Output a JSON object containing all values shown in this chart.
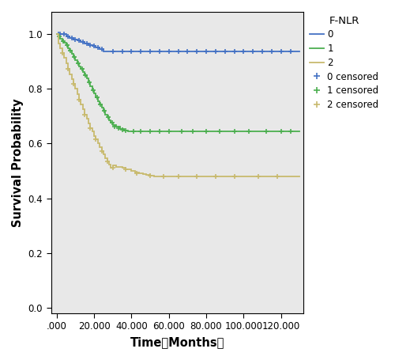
{
  "xlabel": "Time（Months）",
  "ylabel": "Survival Probability",
  "legend_title": "F-NLR",
  "xlim": [
    -3,
    132
  ],
  "ylim": [
    -0.02,
    1.08
  ],
  "xtick_positions": [
    0,
    20,
    40,
    60,
    80,
    100,
    120
  ],
  "xtick_labels": [
    ".000",
    "20.000",
    "40.000",
    "60.000",
    "80.000",
    "100.000",
    "120.000"
  ],
  "yticks": [
    0.0,
    0.2,
    0.4,
    0.6,
    0.8,
    1.0
  ],
  "ytick_labels": [
    "0.0",
    "0.2",
    "0.4",
    "0.6",
    "0.8",
    "1.0"
  ],
  "bg_color": "#e8e8e8",
  "colors": {
    "0": "#4472C4",
    "1": "#4CAF50",
    "2": "#C8BA6E"
  },
  "group0_steps": [
    [
      0,
      1.0
    ],
    [
      3,
      1.0
    ],
    [
      5,
      0.99
    ],
    [
      7,
      0.985
    ],
    [
      9,
      0.98
    ],
    [
      11,
      0.975
    ],
    [
      13,
      0.97
    ],
    [
      15,
      0.965
    ],
    [
      17,
      0.96
    ],
    [
      19,
      0.955
    ],
    [
      21,
      0.95
    ],
    [
      23,
      0.945
    ],
    [
      25,
      0.935
    ],
    [
      130,
      0.935
    ]
  ],
  "group0_censors": [
    [
      1,
      1.0
    ],
    [
      2,
      1.0
    ],
    [
      4,
      1.0
    ],
    [
      6,
      0.99
    ],
    [
      8,
      0.985
    ],
    [
      10,
      0.98
    ],
    [
      12,
      0.975
    ],
    [
      14,
      0.97
    ],
    [
      16,
      0.965
    ],
    [
      18,
      0.96
    ],
    [
      20,
      0.955
    ],
    [
      22,
      0.95
    ],
    [
      24,
      0.945
    ],
    [
      30,
      0.935
    ],
    [
      35,
      0.935
    ],
    [
      40,
      0.935
    ],
    [
      45,
      0.935
    ],
    [
      50,
      0.935
    ],
    [
      55,
      0.935
    ],
    [
      60,
      0.935
    ],
    [
      65,
      0.935
    ],
    [
      70,
      0.935
    ],
    [
      75,
      0.935
    ],
    [
      80,
      0.935
    ],
    [
      85,
      0.935
    ],
    [
      90,
      0.935
    ],
    [
      95,
      0.935
    ],
    [
      100,
      0.935
    ],
    [
      105,
      0.935
    ],
    [
      110,
      0.935
    ],
    [
      115,
      0.935
    ],
    [
      120,
      0.935
    ],
    [
      125,
      0.935
    ]
  ],
  "group1_steps": [
    [
      0,
      1.0
    ],
    [
      1,
      0.99
    ],
    [
      2,
      0.982
    ],
    [
      3,
      0.974
    ],
    [
      4,
      0.966
    ],
    [
      5,
      0.958
    ],
    [
      6,
      0.948
    ],
    [
      7,
      0.938
    ],
    [
      8,
      0.926
    ],
    [
      9,
      0.915
    ],
    [
      10,
      0.904
    ],
    [
      11,
      0.893
    ],
    [
      12,
      0.882
    ],
    [
      13,
      0.871
    ],
    [
      14,
      0.86
    ],
    [
      15,
      0.849
    ],
    [
      16,
      0.837
    ],
    [
      17,
      0.822
    ],
    [
      18,
      0.808
    ],
    [
      19,
      0.795
    ],
    [
      20,
      0.782
    ],
    [
      21,
      0.768
    ],
    [
      22,
      0.754
    ],
    [
      23,
      0.742
    ],
    [
      24,
      0.73
    ],
    [
      25,
      0.718
    ],
    [
      26,
      0.706
    ],
    [
      27,
      0.695
    ],
    [
      28,
      0.685
    ],
    [
      29,
      0.675
    ],
    [
      30,
      0.668
    ],
    [
      32,
      0.66
    ],
    [
      34,
      0.653
    ],
    [
      36,
      0.648
    ],
    [
      38,
      0.645
    ],
    [
      40,
      0.645
    ],
    [
      42,
      0.645
    ],
    [
      45,
      0.645
    ],
    [
      47,
      0.645
    ],
    [
      50,
      0.645
    ],
    [
      55,
      0.645
    ],
    [
      60,
      0.645
    ],
    [
      65,
      0.645
    ],
    [
      70,
      0.645
    ],
    [
      75,
      0.645
    ],
    [
      80,
      0.645
    ],
    [
      85,
      0.645
    ],
    [
      90,
      0.645
    ],
    [
      95,
      0.645
    ],
    [
      100,
      0.645
    ],
    [
      105,
      0.645
    ],
    [
      110,
      0.645
    ],
    [
      115,
      0.645
    ],
    [
      120,
      0.645
    ],
    [
      125,
      0.645
    ],
    [
      130,
      0.645
    ]
  ],
  "group1_censors": [
    [
      1.5,
      0.99
    ],
    [
      3.5,
      0.974
    ],
    [
      5.5,
      0.958
    ],
    [
      7.5,
      0.938
    ],
    [
      9.5,
      0.915
    ],
    [
      11.5,
      0.893
    ],
    [
      13.5,
      0.871
    ],
    [
      15.5,
      0.849
    ],
    [
      17.5,
      0.822
    ],
    [
      19.5,
      0.795
    ],
    [
      21.5,
      0.768
    ],
    [
      23.5,
      0.742
    ],
    [
      25.5,
      0.718
    ],
    [
      27.5,
      0.695
    ],
    [
      29.5,
      0.675
    ],
    [
      31,
      0.66
    ],
    [
      33,
      0.655
    ],
    [
      35,
      0.65
    ],
    [
      37,
      0.647
    ],
    [
      41,
      0.645
    ],
    [
      45,
      0.645
    ],
    [
      50,
      0.645
    ],
    [
      55,
      0.645
    ],
    [
      60,
      0.645
    ],
    [
      67,
      0.645
    ],
    [
      73,
      0.645
    ],
    [
      80,
      0.645
    ],
    [
      87,
      0.645
    ],
    [
      95,
      0.645
    ],
    [
      103,
      0.645
    ],
    [
      112,
      0.645
    ],
    [
      120,
      0.645
    ],
    [
      125,
      0.645
    ]
  ],
  "group2_steps": [
    [
      0,
      1.0
    ],
    [
      1,
      0.965
    ],
    [
      2,
      0.948
    ],
    [
      3,
      0.93
    ],
    [
      4,
      0.912
    ],
    [
      5,
      0.893
    ],
    [
      6,
      0.873
    ],
    [
      7,
      0.852
    ],
    [
      8,
      0.835
    ],
    [
      9,
      0.818
    ],
    [
      10,
      0.8
    ],
    [
      11,
      0.78
    ],
    [
      12,
      0.76
    ],
    [
      13,
      0.742
    ],
    [
      14,
      0.725
    ],
    [
      15,
      0.705
    ],
    [
      16,
      0.69
    ],
    [
      17,
      0.673
    ],
    [
      18,
      0.657
    ],
    [
      19,
      0.643
    ],
    [
      20,
      0.628
    ],
    [
      21,
      0.615
    ],
    [
      22,
      0.6
    ],
    [
      23,
      0.586
    ],
    [
      24,
      0.573
    ],
    [
      25,
      0.56
    ],
    [
      26,
      0.547
    ],
    [
      27,
      0.534
    ],
    [
      28,
      0.522
    ],
    [
      29,
      0.51
    ],
    [
      30,
      0.52
    ],
    [
      32,
      0.515
    ],
    [
      35,
      0.51
    ],
    [
      37,
      0.505
    ],
    [
      40,
      0.5
    ],
    [
      42,
      0.495
    ],
    [
      44,
      0.49
    ],
    [
      46,
      0.487
    ],
    [
      48,
      0.484
    ],
    [
      50,
      0.482
    ],
    [
      52,
      0.48
    ],
    [
      130,
      0.48
    ]
  ],
  "group2_censors": [
    [
      3,
      0.93
    ],
    [
      6,
      0.873
    ],
    [
      9,
      0.818
    ],
    [
      12,
      0.76
    ],
    [
      15,
      0.705
    ],
    [
      18,
      0.657
    ],
    [
      21,
      0.615
    ],
    [
      24,
      0.573
    ],
    [
      27,
      0.534
    ],
    [
      30,
      0.51
    ],
    [
      37,
      0.505
    ],
    [
      43,
      0.492
    ],
    [
      50,
      0.482
    ],
    [
      57,
      0.48
    ],
    [
      65,
      0.48
    ],
    [
      75,
      0.48
    ],
    [
      85,
      0.48
    ],
    [
      95,
      0.48
    ],
    [
      108,
      0.48
    ],
    [
      118,
      0.48
    ]
  ]
}
